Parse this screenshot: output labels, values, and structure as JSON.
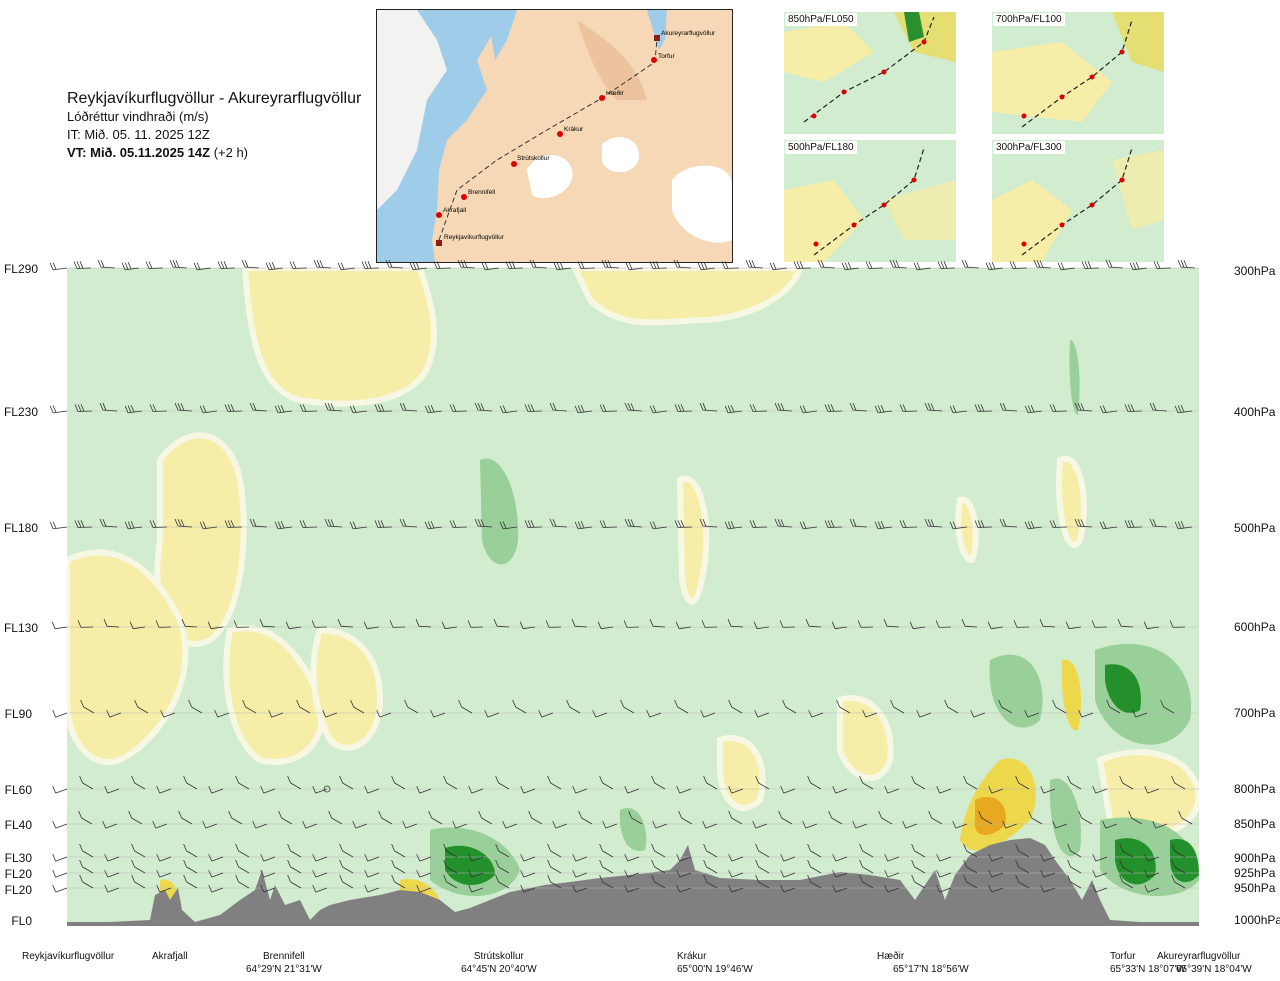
{
  "header": {
    "route": "Reykjavíkurflugvöllur - Akureyrarflugvöllur",
    "parameter": "Lóðréttur vindhraði (m/s)",
    "issue_time": "IT: Mið. 05. 11. 2025 12Z",
    "valid_time": "VT: Mið. 05.11.2025 14Z",
    "valid_offset": " (+2 h)"
  },
  "map": {
    "places": [
      "Akureyrarflugvöllur",
      "Torfur",
      "Hæðir",
      "Krákur",
      "Strútskollur",
      "Brennifell",
      "Akrafjall",
      "Reykjavíkurflugvöllur"
    ]
  },
  "thumbnails": [
    {
      "label": "850hPa/FL050"
    },
    {
      "label": "700hPa/FL100"
    },
    {
      "label": "500hPa/FL180"
    },
    {
      "label": "300hPa/FL300"
    }
  ],
  "chart_data": {
    "type": "heatmap",
    "title": "Lóðréttur vindhraði (m/s)",
    "flight_levels": [
      "FL290",
      "FL230",
      "FL180",
      "FL130",
      "FL90",
      "FL60",
      "FL40",
      "FL30",
      "FL20",
      "FL20",
      "FL0"
    ],
    "pressure_levels": [
      "300hPa",
      "400hPa",
      "500hPa",
      "600hPa",
      "700hPa",
      "800hPa",
      "850hPa",
      "900hPa",
      "925hPa",
      "950hPa",
      "1000hPa"
    ],
    "locations": [
      {
        "name": "Reykjavíkurflugvöllur",
        "coord": ""
      },
      {
        "name": "Akrafjall",
        "coord": ""
      },
      {
        "name": "Brennifell",
        "coord": "64°29'N 21°31'W"
      },
      {
        "name": "Strútskollur",
        "coord": "64°45'N 20°40'W"
      },
      {
        "name": "Krákur",
        "coord": "65°00'N 19°46'W"
      },
      {
        "name": "Hæðir",
        "coord": "65°17'N 18°56'W"
      },
      {
        "name": "Torfur",
        "coord": "65°33'N 18°07'W"
      },
      {
        "name": "Akureyrarflugvöllur",
        "coord": "65°39'N 18°04'W"
      }
    ],
    "location_distance_fraction": [
      0.0,
      0.094,
      0.19,
      0.38,
      0.55,
      0.735,
      0.94,
      1.0
    ],
    "colors": {
      "green_light": "#d2ecd0",
      "green_mid": "#99cf98",
      "green_dark": "#56a65a",
      "green_deep": "#23902b",
      "yellow_light": "#f5eda8",
      "yellow_mid": "#ecd84a",
      "orange": "#e8a820",
      "pale": "#f7f8e4",
      "terrain": "#808080"
    },
    "wind_barb_levels": [
      "FL290",
      "FL230",
      "FL180",
      "FL130",
      "FL90",
      "FL60",
      "FL40",
      "FL30",
      "FL20",
      "FL20"
    ]
  }
}
